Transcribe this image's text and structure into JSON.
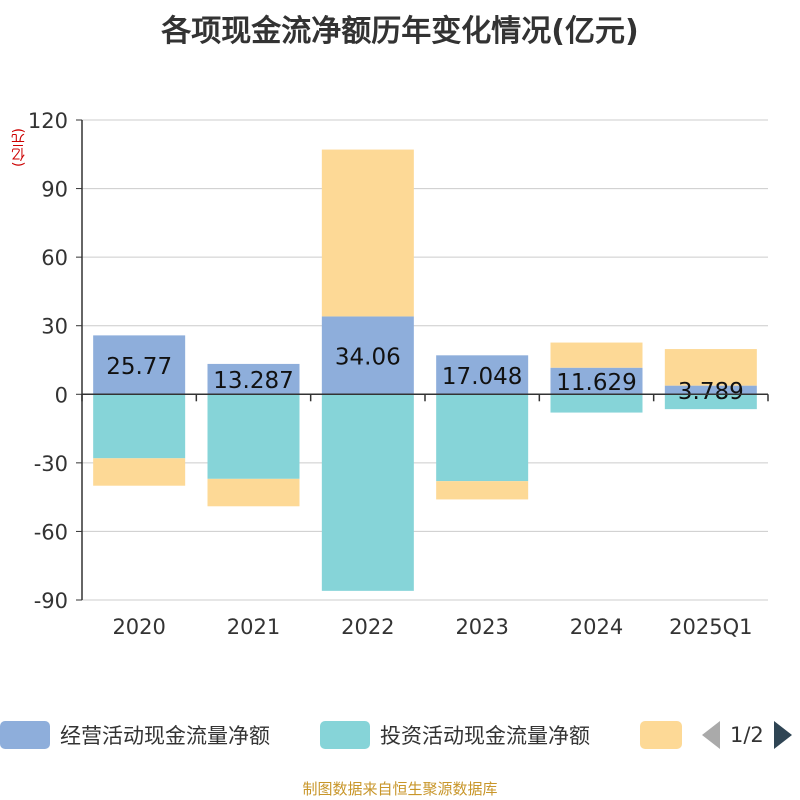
{
  "chart_data": {
    "type": "bar",
    "stacked": true,
    "title": "各项现金流净额历年变化情况(亿元)",
    "ylabel": "(亿元)",
    "ylim": [
      -90,
      120
    ],
    "yticks": [
      120,
      90,
      60,
      30,
      0,
      -30,
      -60,
      -90
    ],
    "categories": [
      "2020",
      "2021",
      "2022",
      "2023",
      "2024",
      "2025Q1"
    ],
    "series": [
      {
        "name": "经营活动现金流量净额",
        "color": "#8eaedb",
        "values": [
          25.77,
          13.287,
          34.06,
          17.048,
          11.629,
          3.789
        ],
        "labels": [
          "25.77",
          "13.287",
          "34.06",
          "17.048",
          "11.629",
          "3.789"
        ]
      },
      {
        "name": "投资活动现金流量净额",
        "color": "#86d4d8",
        "values": [
          -28,
          -37,
          -86,
          -38,
          -8,
          -6.5
        ]
      },
      {
        "name": "",
        "color": "#fdd996",
        "values": [
          -12,
          -12,
          73,
          -8,
          11,
          16
        ]
      }
    ]
  },
  "legend": {
    "items": [
      {
        "label": "经营活动现金流量净额",
        "color": "#8eaedb"
      },
      {
        "label": "投资活动现金流量净额",
        "color": "#86d4d8"
      },
      {
        "label": "",
        "color": "#fdd996"
      }
    ],
    "page": "1/2"
  },
  "source": "制图数据来自恒生聚源数据库"
}
